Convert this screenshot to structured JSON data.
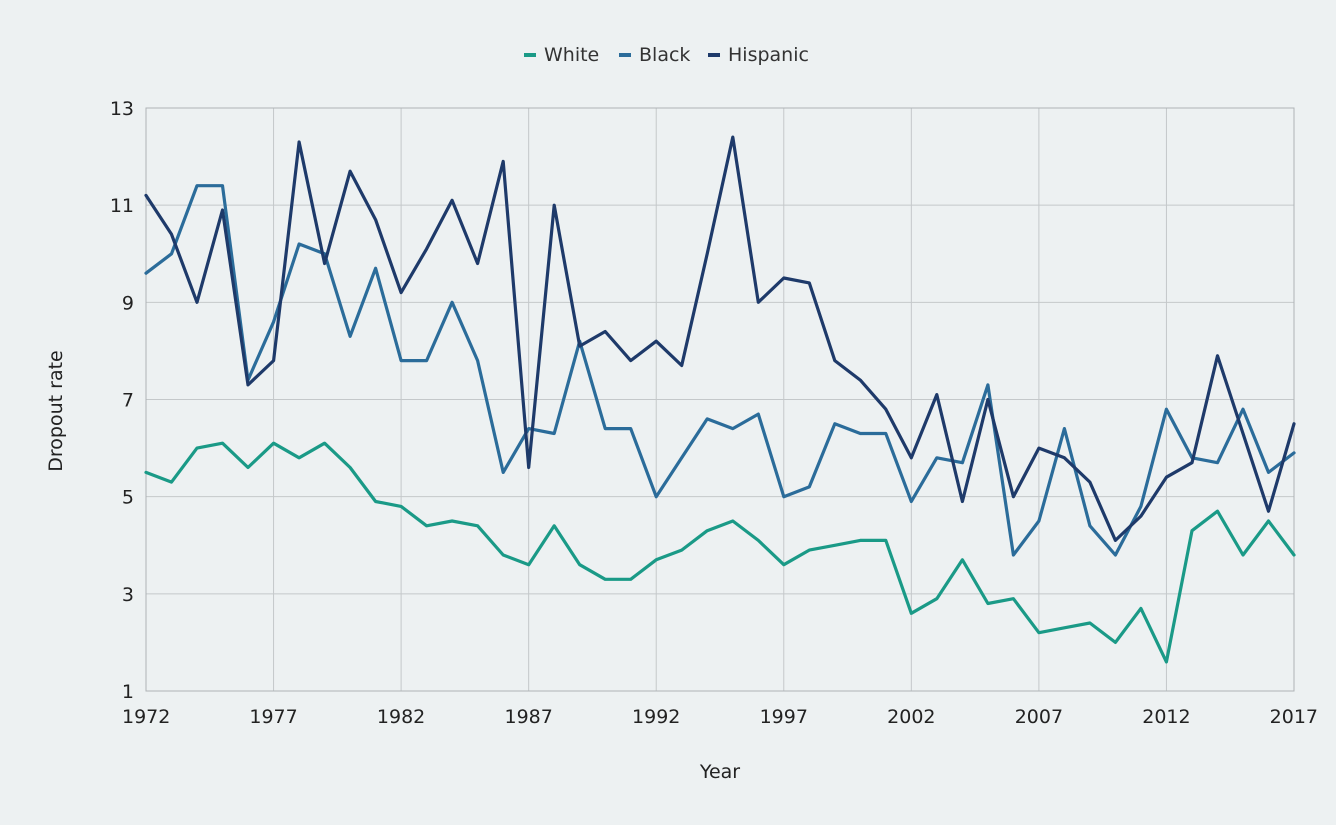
{
  "chart_data": {
    "type": "line",
    "title": "",
    "xlabel": "Year",
    "ylabel": "Dropout rate",
    "xlim": [
      1972,
      2017
    ],
    "ylim": [
      1,
      13
    ],
    "x_ticks": [
      "1972",
      "1977",
      "1982",
      "1987",
      "1992",
      "1997",
      "2002",
      "2007",
      "2012",
      "2017"
    ],
    "y_ticks": [
      "1",
      "3",
      "5",
      "7",
      "9",
      "11",
      "13"
    ],
    "grid": true,
    "legend_position": "top-center",
    "x": [
      1972,
      1973,
      1974,
      1975,
      1976,
      1977,
      1978,
      1979,
      1980,
      1981,
      1982,
      1983,
      1984,
      1985,
      1986,
      1987,
      1988,
      1989,
      1990,
      1991,
      1992,
      1993,
      1994,
      1995,
      1996,
      1997,
      1998,
      1999,
      2000,
      2001,
      2002,
      2003,
      2004,
      2005,
      2006,
      2007,
      2008,
      2009,
      2010,
      2011,
      2012,
      2013,
      2014,
      2015,
      2016,
      2017
    ],
    "series": [
      {
        "name": "White",
        "color": "#1a9a87",
        "values": [
          5.5,
          5.3,
          6.0,
          6.1,
          5.6,
          6.1,
          5.8,
          6.1,
          5.6,
          4.9,
          4.8,
          4.4,
          4.5,
          4.4,
          3.8,
          3.6,
          4.4,
          3.6,
          3.3,
          3.3,
          3.7,
          3.9,
          4.3,
          4.5,
          4.1,
          3.6,
          3.9,
          4.0,
          4.1,
          4.1,
          2.6,
          2.9,
          3.7,
          2.8,
          2.9,
          2.2,
          2.3,
          2.4,
          2.0,
          2.7,
          1.6,
          4.3,
          4.7,
          3.8,
          4.5,
          3.8
        ]
      },
      {
        "name": "Black",
        "color": "#2b6c9a",
        "values": [
          9.6,
          10.0,
          11.4,
          11.4,
          7.4,
          8.6,
          10.2,
          10.0,
          8.3,
          9.7,
          7.8,
          7.8,
          9.0,
          7.8,
          5.5,
          6.4,
          6.3,
          8.2,
          6.4,
          6.4,
          5.0,
          5.8,
          6.6,
          6.4,
          6.7,
          5.0,
          5.2,
          6.5,
          6.3,
          6.3,
          4.9,
          5.8,
          5.7,
          7.3,
          3.8,
          4.5,
          6.4,
          4.4,
          3.8,
          4.8,
          6.8,
          5.8,
          5.7,
          6.8,
          5.5,
          5.9
        ]
      },
      {
        "name": "Hispanic",
        "color": "#1e3a6a",
        "values": [
          11.2,
          10.4,
          9.0,
          10.9,
          7.3,
          7.8,
          12.3,
          9.8,
          11.7,
          10.7,
          9.2,
          10.1,
          11.1,
          9.8,
          11.9,
          5.6,
          11.0,
          8.1,
          8.4,
          7.8,
          8.2,
          7.7,
          10.0,
          12.4,
          9.0,
          9.5,
          9.4,
          7.8,
          7.4,
          6.8,
          5.8,
          7.1,
          4.9,
          7.0,
          5.0,
          6.0,
          5.8,
          5.3,
          4.1,
          4.6,
          5.4,
          5.7,
          7.9,
          6.3,
          4.7,
          6.5
        ]
      }
    ]
  }
}
